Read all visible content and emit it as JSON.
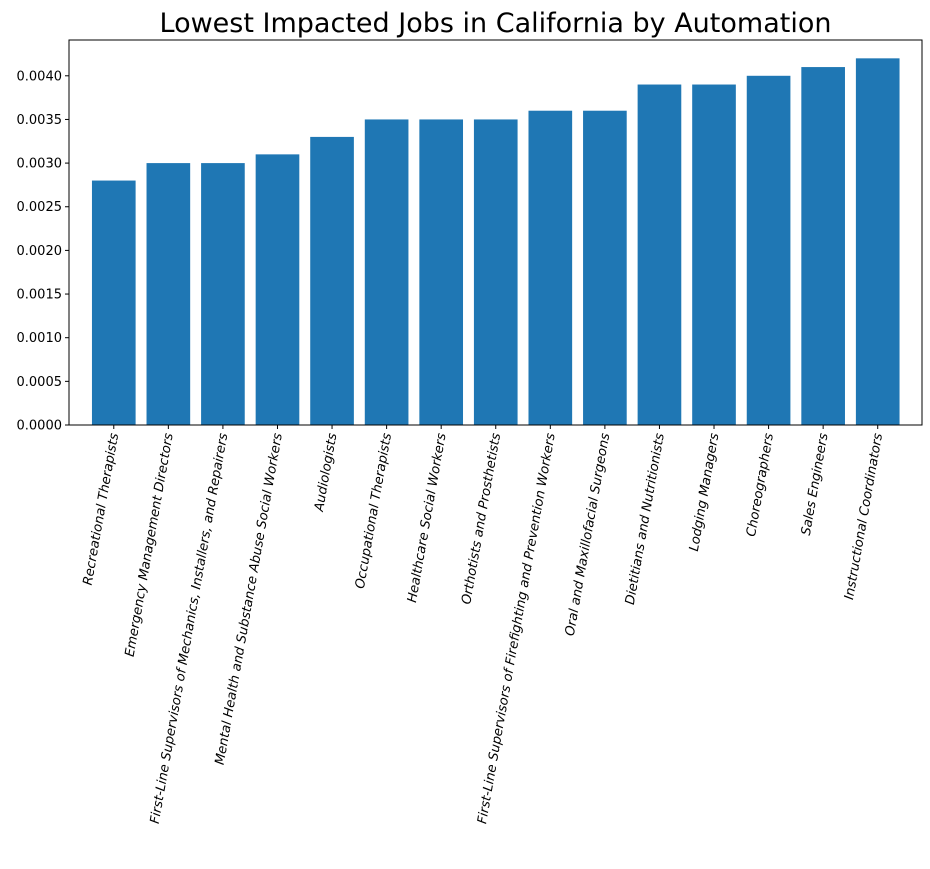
{
  "chart_data": {
    "type": "bar",
    "title": "Lowest Impacted Jobs in California by Automation",
    "xlabel": "",
    "ylabel": "",
    "ylim": [
      0,
      0.00441
    ],
    "yticks": [
      "0.0000",
      "0.0005",
      "0.0010",
      "0.0015",
      "0.0020",
      "0.0025",
      "0.0030",
      "0.0035",
      "0.0040"
    ],
    "grid": false,
    "legend": "none",
    "bar_color": "#1f77b4",
    "categories": [
      "Recreational Therapists",
      "Emergency Management Directors",
      "First-Line Supervisors of Mechanics, Installers, and Repairers",
      "Mental Health and Substance Abuse Social Workers",
      "Audiologists",
      "Occupational Therapists",
      "Healthcare Social Workers",
      "Orthotists and Prosthetists",
      "First-Line Supervisors of Firefighting and Prevention Workers",
      "Oral and Maxillofacial Surgeons",
      "Dietitians and Nutritionists",
      "Lodging Managers",
      "Choreographers",
      "Sales Engineers",
      "Instructional Coordinators"
    ],
    "values": [
      0.0028,
      0.003,
      0.003,
      0.0031,
      0.0033,
      0.0035,
      0.0035,
      0.0035,
      0.0036,
      0.0036,
      0.0039,
      0.0039,
      0.004,
      0.0041,
      0.0042
    ]
  }
}
